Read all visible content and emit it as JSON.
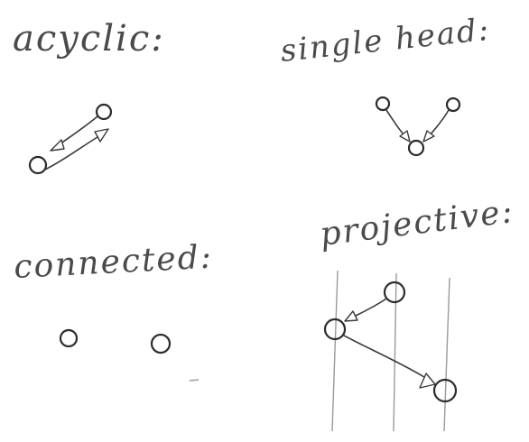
{
  "panels": {
    "acyclic": {
      "label": "acyclic:"
    },
    "single_head": {
      "label": "single head:"
    },
    "connected": {
      "label": "connected:"
    },
    "projective": {
      "label": "projective:"
    }
  }
}
